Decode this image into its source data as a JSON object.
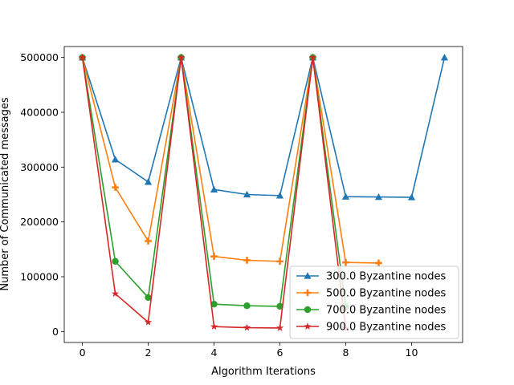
{
  "chart_data": {
    "type": "line",
    "title": "",
    "xlabel": "Algorithm Iterations",
    "ylabel": "Number of Communicated messages",
    "xlim": [
      -0.55,
      11.55
    ],
    "ylim": [
      -20000,
      520000
    ],
    "xticks": [
      0,
      2,
      4,
      6,
      8,
      10
    ],
    "yticks": [
      0,
      100000,
      200000,
      300000,
      400000,
      500000
    ],
    "legend_position": "lower-right",
    "grid": false,
    "series": [
      {
        "name": "300.0 Byzantine nodes",
        "color": "#1f77b4",
        "marker": "triangle",
        "x": [
          0,
          1,
          2,
          3,
          4,
          5,
          6,
          7,
          8,
          9,
          10,
          11
        ],
        "values": [
          500000,
          314000,
          273000,
          500000,
          259000,
          250000,
          248000,
          500000,
          246000,
          245500,
          245000,
          500000
        ]
      },
      {
        "name": "500.0 Byzantine nodes",
        "color": "#ff7f0e",
        "marker": "plus",
        "x": [
          0,
          1,
          2,
          3,
          4,
          5,
          6,
          7,
          8,
          9
        ],
        "values": [
          500000,
          263000,
          165000,
          500000,
          137000,
          130000,
          128000,
          500000,
          126000,
          125000
        ]
      },
      {
        "name": "700.0 Byzantine nodes",
        "color": "#2ca02c",
        "marker": "circle",
        "x": [
          0,
          1,
          2,
          3,
          4,
          5,
          6,
          7,
          8
        ],
        "values": [
          500000,
          128000,
          62000,
          500000,
          50000,
          47000,
          46000,
          500000,
          45000
        ]
      },
      {
        "name": "900.0 Byzantine nodes",
        "color": "#d62728",
        "marker": "star",
        "x": [
          0,
          1,
          2,
          3,
          4,
          5,
          6,
          7,
          8
        ],
        "values": [
          500000,
          69000,
          17000,
          500000,
          9000,
          7000,
          6500,
          500000,
          6000
        ]
      }
    ]
  }
}
